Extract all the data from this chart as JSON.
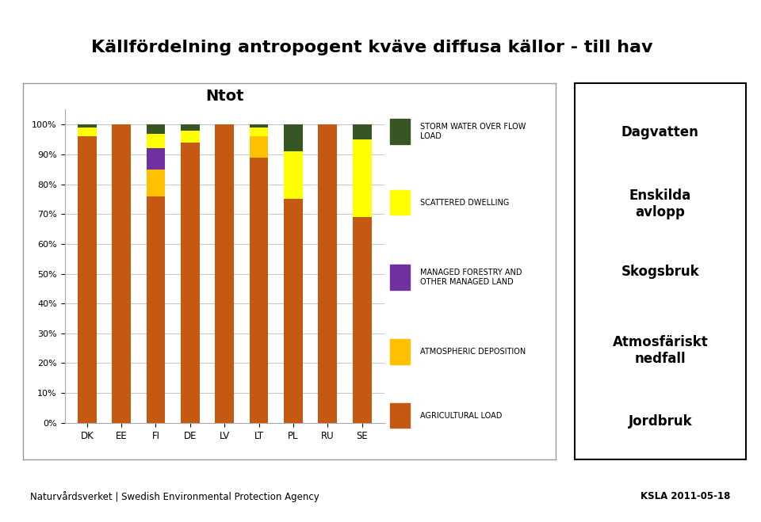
{
  "title_main": "Källfördelning antropogent kväve diffusa källor - till hav",
  "chart_title": "Ntot",
  "categories": [
    "DK",
    "EE",
    "FI",
    "DE",
    "LV",
    "LT",
    "PL",
    "RU",
    "SE"
  ],
  "agricultural_load": [
    96,
    100,
    76,
    94,
    100,
    89,
    75,
    100,
    69
  ],
  "atmospheric_deposition": [
    0,
    0,
    9,
    0,
    0,
    7,
    0,
    0,
    0
  ],
  "managed_forestry": [
    0,
    0,
    7,
    0,
    0,
    0,
    0,
    0,
    0
  ],
  "scattered_dwelling": [
    3,
    0,
    5,
    4,
    0,
    3,
    16,
    0,
    26
  ],
  "storm_water": [
    1,
    0,
    3,
    2,
    0,
    1,
    9,
    0,
    5
  ],
  "colors": {
    "agricultural_load": "#C65911",
    "atmospheric_deposition": "#FFC000",
    "managed_forestry": "#7030A0",
    "scattered_dwelling": "#FFFF00",
    "storm_water": "#375623"
  },
  "legend_labels": {
    "storm_water": "STORM WATER OVER FLOW\nLOAD",
    "scattered_dwelling": "SCATTERED DWELLING",
    "managed_forestry": "MANAGED FORESTRY AND\nOTHER MANAGED LAND",
    "atmospheric_deposition": "ATMOSPHERIC DEPOSITION",
    "agricultural_load": "AGRICULTURAL LOAD"
  },
  "right_labels": [
    "Dagvatten",
    "Enskilda\navlopp",
    "Skogsbruk",
    "Atmosfäriskt\nnedfall",
    "Jordbruk"
  ],
  "footer_left": "Naturvårdsverket | Swedish Environmental Protection Agency",
  "footer_right": "KSLA 2011-05-18",
  "bg_color": "#FFFFFF",
  "footer_bg": "#C5D9E8",
  "logo_bg": "#1F3864",
  "ytick_labels": [
    "0%",
    "10%",
    "20%",
    "30%",
    "40%",
    "50%",
    "60%",
    "70%",
    "80%",
    "90%",
    "100%"
  ],
  "ytick_vals": [
    0,
    10,
    20,
    30,
    40,
    50,
    60,
    70,
    80,
    90,
    100
  ]
}
